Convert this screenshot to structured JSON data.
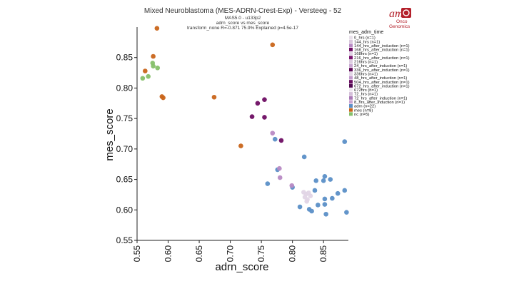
{
  "chart_data": {
    "type": "scatter",
    "title": "Mixed Neuroblastoma (MES-ADRN-Crest-Exp) - Versteeg - 52",
    "subtitle_lines": [
      "MAS5.0 - u133p2",
      "adrn_score vs mes_score",
      "transform_none R=-0.871 75.9% Explained p=4.5e-17"
    ],
    "xlabel": "adrn_score",
    "ylabel": "mes_score",
    "xlim": [
      0.55,
      0.89
    ],
    "ylim": [
      0.55,
      0.9
    ],
    "x_ticks": [
      "0.55",
      "0.60",
      "0.65",
      "0.70",
      "0.75",
      "0.80",
      "0.85"
    ],
    "y_ticks": [
      "0.55",
      "0.60",
      "0.65",
      "0.70",
      "0.75",
      "0.80",
      "0.85"
    ],
    "legend_title": "mes_adrn_time",
    "legend_position": "top-right",
    "legend": [
      {
        "label": "0_hrs (n=1)",
        "color": "#e8e0ea"
      },
      {
        "label": "144_hrs (n=1)",
        "color": "#d9c8dd"
      },
      {
        "label": "144_hrs_after_induction (n=1)",
        "color": "#b88ac4"
      },
      {
        "label": "168_hrs_after_induction (n=1)",
        "color": "#6e0d63"
      },
      {
        "label": "168hrs (n=1)",
        "color": "#e0d2e4"
      },
      {
        "label": "216_hrs_after_induction (n=1)",
        "color": "#7a1470"
      },
      {
        "label": "216hrs (n=1)",
        "color": "#dccde0"
      },
      {
        "label": "24_hrs_after_induction (n=1)",
        "color": "#c9a7d2"
      },
      {
        "label": "336_hrs_after_induction (n=1)",
        "color": "#5e0a57"
      },
      {
        "label": "336hrs (n=1)",
        "color": "#e3d6e6"
      },
      {
        "label": "48_hrs_after_induction (n=1)",
        "color": "#c39bcd"
      },
      {
        "label": "504_hrs_after_induction (n=1)",
        "color": "#6a0f62"
      },
      {
        "label": "672_hrs_after_induction (n=1)",
        "color": "#520850"
      },
      {
        "label": "672hrs (n=1)",
        "color": "#eee6f0"
      },
      {
        "label": "72_hrs (n=1)",
        "color": "#d4bfd9"
      },
      {
        "label": "72_hrs_after_induction (n=1)",
        "color": "#a978b6"
      },
      {
        "label": "8_hrs_after_induction (n=1)",
        "color": "#caa6d3"
      },
      {
        "label": "adrn (n=22)",
        "color": "#5b8fc7"
      },
      {
        "label": "mes (n=8)",
        "color": "#c9651a"
      },
      {
        "label": "nc (n=5)",
        "color": "#86c06a"
      }
    ],
    "series": [
      {
        "group": "mes (n=8)",
        "color": "#c9651a",
        "points": [
          [
            0.582,
            0.898
          ],
          [
            0.768,
            0.871
          ],
          [
            0.576,
            0.852
          ],
          [
            0.563,
            0.828
          ],
          [
            0.59,
            0.786
          ],
          [
            0.592,
            0.784
          ],
          [
            0.674,
            0.785
          ],
          [
            0.717,
            0.705
          ]
        ]
      },
      {
        "group": "nc (n=5)",
        "color": "#86c06a",
        "points": [
          [
            0.575,
            0.841
          ],
          [
            0.576,
            0.836
          ],
          [
            0.583,
            0.833
          ],
          [
            0.568,
            0.819
          ],
          [
            0.559,
            0.816
          ]
        ]
      },
      {
        "group": "adrn (n=22)",
        "color": "#5b8fc7",
        "points": [
          [
            0.884,
            0.712
          ],
          [
            0.772,
            0.716
          ],
          [
            0.819,
            0.687
          ],
          [
            0.852,
            0.655
          ],
          [
            0.85,
            0.648
          ],
          [
            0.838,
            0.648
          ],
          [
            0.861,
            0.65
          ],
          [
            0.76,
            0.643
          ],
          [
            0.836,
            0.632
          ],
          [
            0.884,
            0.632
          ],
          [
            0.873,
            0.627
          ],
          [
            0.864,
            0.619
          ],
          [
            0.852,
            0.618
          ],
          [
            0.841,
            0.608
          ],
          [
            0.852,
            0.609
          ],
          [
            0.812,
            0.605
          ],
          [
            0.827,
            0.601
          ],
          [
            0.831,
            0.598
          ],
          [
            0.854,
            0.593
          ],
          [
            0.887,
            0.596
          ],
          [
            0.776,
            0.666
          ],
          [
            0.8,
            0.637
          ]
        ]
      },
      {
        "group": "time",
        "color": "#b88ac4",
        "points": [
          [
            0.768,
            0.726
          ],
          [
            0.779,
            0.668
          ],
          [
            0.78,
            0.653
          ],
          [
            0.799,
            0.64
          ]
        ]
      },
      {
        "group": "time-dark",
        "color": "#6e0d63",
        "points": [
          [
            0.755,
            0.781
          ],
          [
            0.744,
            0.775
          ],
          [
            0.735,
            0.753
          ],
          [
            0.755,
            0.752
          ],
          [
            0.782,
            0.714
          ]
        ]
      },
      {
        "group": "time-light",
        "color": "#e2d5e6",
        "points": [
          [
            0.818,
            0.629
          ],
          [
            0.822,
            0.626
          ],
          [
            0.826,
            0.628
          ],
          [
            0.82,
            0.621
          ],
          [
            0.824,
            0.617
          ],
          [
            0.829,
            0.623
          ],
          [
            0.823,
            0.614
          ]
        ]
      }
    ]
  },
  "logo": {
    "main": "am",
    "sub1": "Onco",
    "sub2": "Genomics"
  }
}
